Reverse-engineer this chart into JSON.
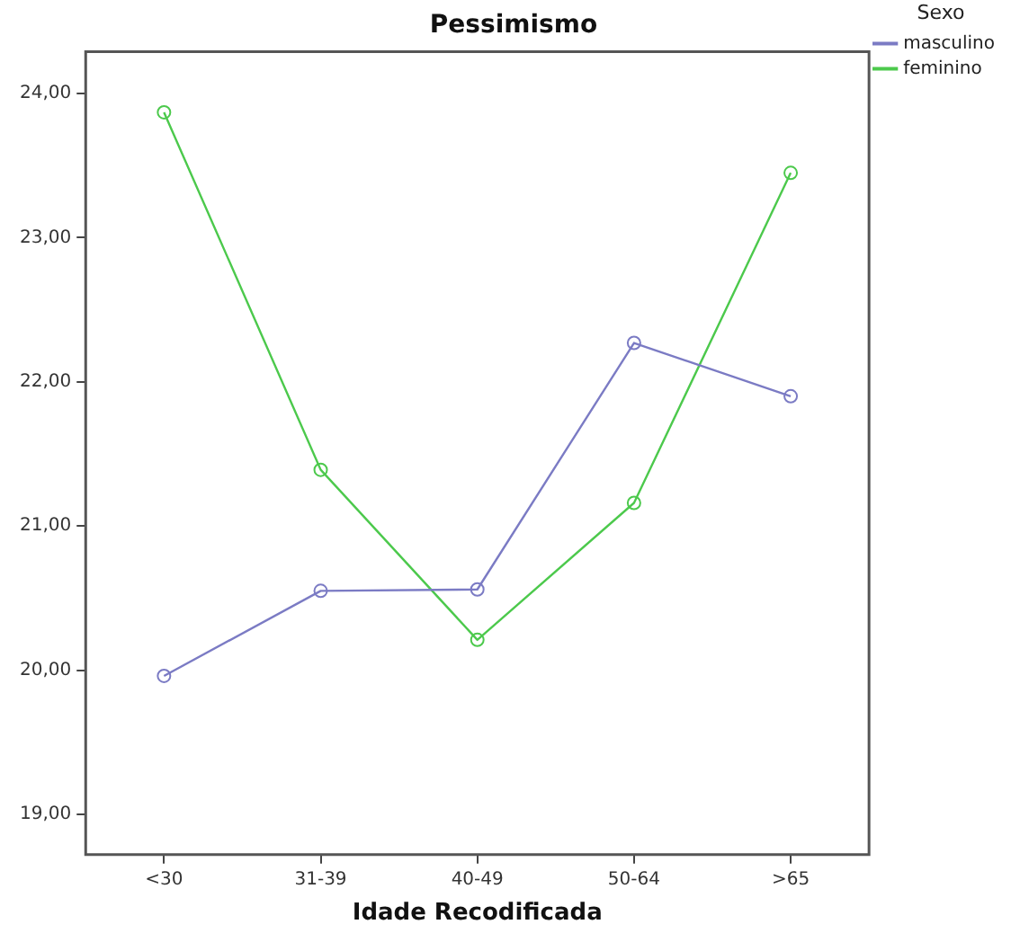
{
  "chart_data": {
    "type": "line",
    "title": "Pessimismo",
    "xlabel": "Idade Recodificada",
    "legend_title": "Sexo",
    "categories": [
      "<30",
      "31-39",
      "40-49",
      "50-64",
      ">65"
    ],
    "series": [
      {
        "name": "masculino",
        "color": "#7b7bc4",
        "values": [
          19.96,
          20.55,
          20.56,
          22.27,
          21.9
        ]
      },
      {
        "name": "feminino",
        "color": "#4cc94c",
        "values": [
          23.87,
          21.39,
          20.21,
          21.16,
          23.45
        ]
      }
    ],
    "ylim": [
      18.72,
      24.29
    ],
    "yticks": [
      {
        "value": 19,
        "label": "19,00"
      },
      {
        "value": 20,
        "label": "20,00"
      },
      {
        "value": 21,
        "label": "21,00"
      },
      {
        "value": 22,
        "label": "22,00"
      },
      {
        "value": 23,
        "label": "23,00"
      },
      {
        "value": 24,
        "label": "24,00"
      }
    ],
    "grid": false,
    "legend": "top right",
    "marker": "circle",
    "line_style": "solid"
  }
}
